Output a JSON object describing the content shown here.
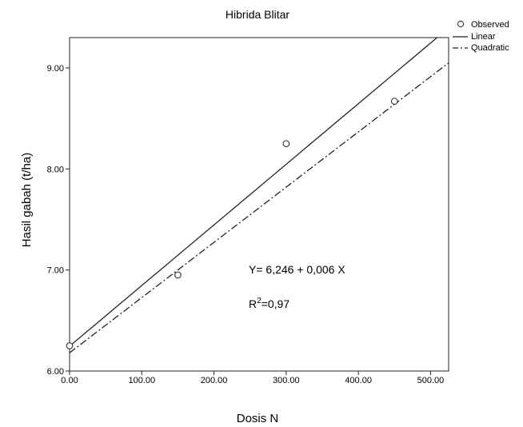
{
  "chart_data": {
    "type": "scatter",
    "title": "Hibrida Blitar",
    "xlabel": "Dosis N",
    "ylabel": "Hasil gabah (t/ha)",
    "xlim": [
      0,
      525
    ],
    "ylim": [
      6.0,
      9.3
    ],
    "x_ticks": [
      "0.00",
      "100.00",
      "200.00",
      "300.00",
      "400.00",
      "500.00"
    ],
    "y_ticks": [
      "6.00",
      "7.00",
      "8.00",
      "9.00"
    ],
    "grid": false,
    "legend_position": "top-right, outside plot",
    "observed": {
      "name": "Observed",
      "x": [
        0,
        150,
        300,
        450
      ],
      "y": [
        6.25,
        6.95,
        8.25,
        8.67
      ]
    },
    "linear": {
      "name": "Linear",
      "intercept": 6.246,
      "slope": 0.006
    },
    "quadratic": {
      "name": "Quadratic",
      "x": [
        0,
        525
      ],
      "y": [
        6.18,
        9.05
      ]
    },
    "annotations": {
      "equation": "Y= 6,246 + 0,006 X",
      "r2_prefix": "R",
      "r2_sup": "2",
      "r2_value": "=0,97"
    }
  }
}
